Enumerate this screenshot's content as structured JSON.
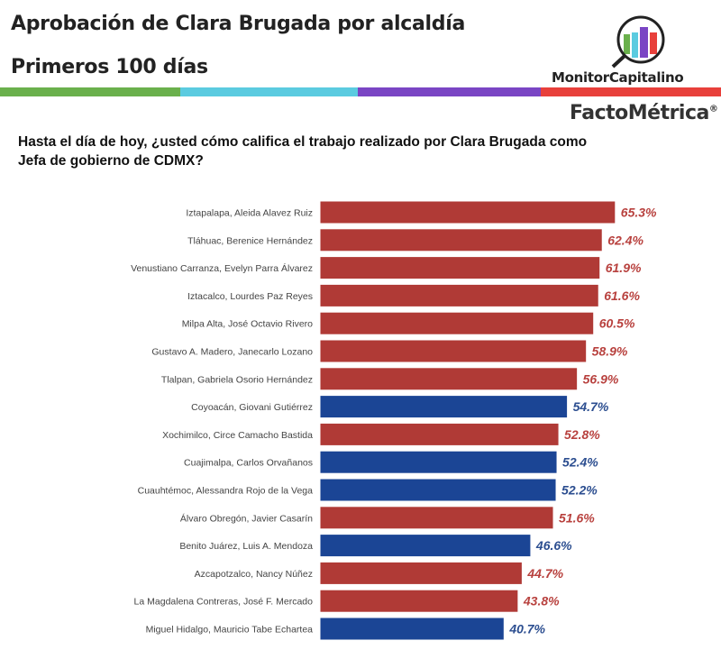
{
  "header": {
    "title": "Aprobación de Clara Brugada por alcaldía",
    "subtitle": "Primeros 100 días"
  },
  "logos": {
    "monitor": "MonitorCapitalino",
    "facto": "FactoMétrica",
    "registered": "®"
  },
  "colors": {
    "stripe": [
      "#6ab04c",
      "#5bcbe0",
      "#7a45c4",
      "#e8403b"
    ],
    "red": "#b03a36",
    "blue": "#1b4595",
    "red_label": "#b8413e",
    "blue_label": "#2c4e90"
  },
  "chart_data": {
    "type": "bar",
    "orientation": "horizontal",
    "title": "Hasta el día de hoy, ¿usted cómo califica el trabajo realizado por Clara Brugada como Jefa de gobierno de CDMX?",
    "xlabel": "",
    "ylabel": "",
    "xlim": [
      0,
      70
    ],
    "categories": [
      "Iztapalapa, Aleida Alavez Ruiz",
      "Tláhuac, Berenice Hernández",
      "Venustiano Carranza, Evelyn Parra Álvarez",
      "Iztacalco, Lourdes Paz Reyes",
      "Milpa Alta, José Octavio Rivero",
      "Gustavo A. Madero, Janecarlo Lozano",
      "Tlalpan, Gabriela Osorio Hernández",
      "Coyoacán, Giovani Gutiérrez",
      "Xochimilco, Circe Camacho Bastida",
      "Cuajimalpa, Carlos Orvañanos",
      "Cuauhtémoc, Alessandra Rojo de la Vega",
      "Álvaro Obregón, Javier Casarín",
      "Benito Juárez, Luis A. Mendoza",
      "Azcapotzalco, Nancy Núñez",
      "La Magdalena Contreras, José F. Mercado",
      "Miguel Hidalgo, Mauricio Tabe Echartea"
    ],
    "values": [
      65.3,
      62.4,
      61.9,
      61.6,
      60.5,
      58.9,
      56.9,
      54.7,
      52.8,
      52.4,
      52.2,
      51.6,
      46.6,
      44.7,
      43.8,
      40.7
    ],
    "labels": [
      "65.3%",
      "62.4%",
      "61.9%",
      "61.6%",
      "60.5%",
      "58.9%",
      "56.9%",
      "54.7%",
      "52.8%",
      "52.4%",
      "52.2%",
      "51.6%",
      "46.6%",
      "44.7%",
      "43.8%",
      "40.7%"
    ],
    "party": [
      "red",
      "red",
      "red",
      "red",
      "red",
      "red",
      "red",
      "blue",
      "red",
      "blue",
      "blue",
      "red",
      "blue",
      "red",
      "red",
      "blue"
    ]
  }
}
